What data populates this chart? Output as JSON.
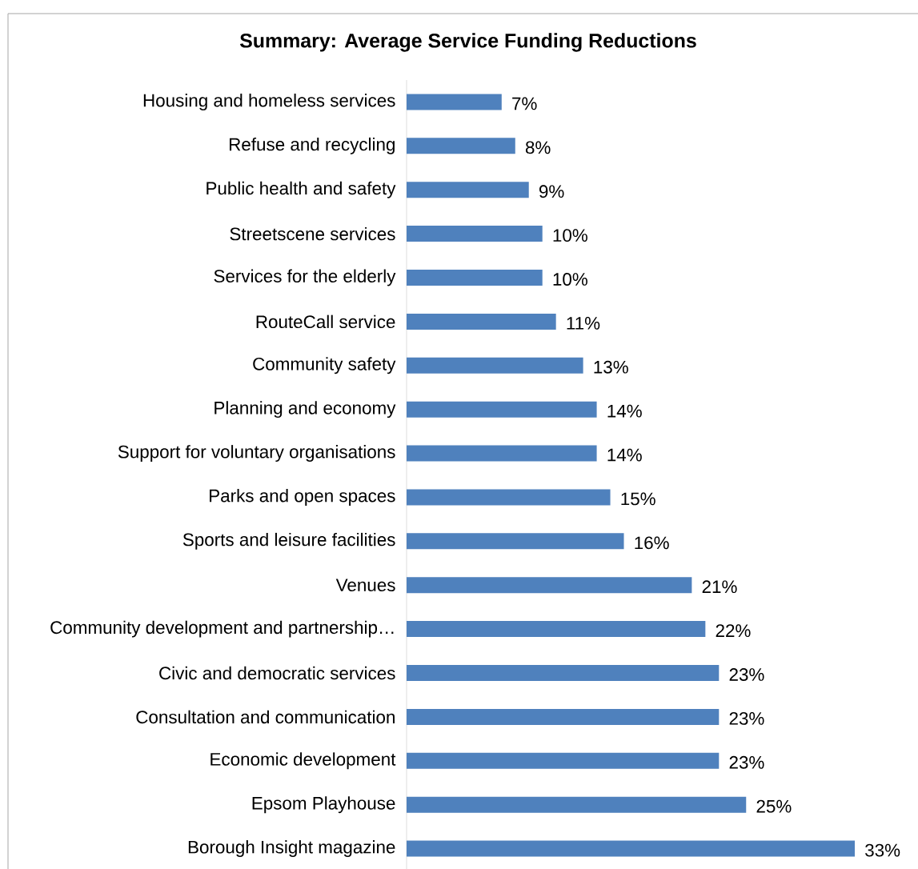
{
  "chart_data": {
    "type": "bar",
    "orientation": "horizontal",
    "title": "Summary: Average Service Funding Reductions",
    "categories": [
      "Housing and homeless services",
      "Refuse and recycling",
      "Public health and safety",
      "Streetscene services",
      "Services for the elderly",
      "RouteCall service",
      "Community safety",
      "Planning and economy",
      "Support for voluntary organisations",
      "Parks and open spaces",
      "Sports and leisure facilities",
      "Venues",
      "Community development and partnership…",
      "Civic and democratic services",
      "Consultation and communication",
      "Economic development",
      "Epsom Playhouse",
      "Borough Insight magazine"
    ],
    "values": [
      7,
      8,
      9,
      10,
      10,
      11,
      13,
      14,
      14,
      15,
      16,
      21,
      22,
      23,
      23,
      23,
      25,
      33
    ],
    "value_labels": [
      "7%",
      "8%",
      "9%",
      "10%",
      "10%",
      "11%",
      "13%",
      "14%",
      "14%",
      "15%",
      "16%",
      "21%",
      "22%",
      "23%",
      "23%",
      "23%",
      "25%",
      "33%"
    ],
    "color": "#4f81bd",
    "tick_labels": "y"
  }
}
